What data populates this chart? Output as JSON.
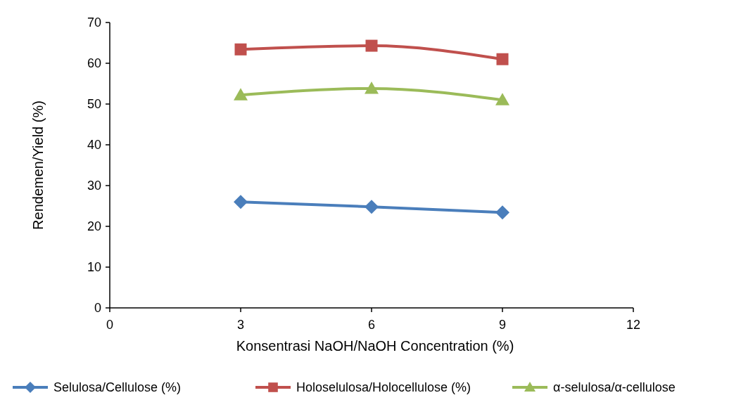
{
  "chart_data": {
    "type": "line",
    "xlabel": "Konsentrasi NaOH/NaOH Concentration (%)",
    "ylabel": "Rendemen/Yield (%)",
    "x": [
      3,
      6,
      9
    ],
    "series": [
      {
        "name": "Selulosa/Cellulose (%)",
        "color": "#4a7ebb",
        "marker": "diamond",
        "values": [
          26.0,
          24.8,
          23.4
        ]
      },
      {
        "name": "Holoselulosa/Holocellulose (%)",
        "color": "#c0504d",
        "marker": "square",
        "values": [
          63.4,
          64.3,
          61.0
        ]
      },
      {
        "name": "α-selulosa/α-cellulose",
        "color": "#9bbb59",
        "marker": "triangle",
        "values": [
          52.2,
          53.8,
          51.0
        ]
      }
    ],
    "xlim": [
      0,
      12
    ],
    "xticks": [
      0,
      3,
      6,
      9,
      12
    ],
    "ylim": [
      0,
      70
    ],
    "yticks": [
      0,
      10,
      20,
      30,
      40,
      50,
      60,
      70
    ],
    "grid": false,
    "legend": "bottom",
    "line_style": "solid"
  }
}
